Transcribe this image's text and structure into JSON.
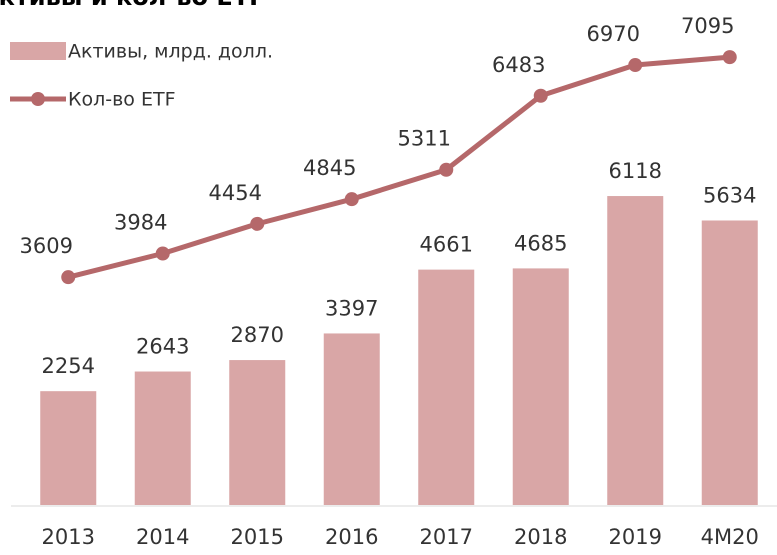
{
  "chart_data": {
    "type": "bar_line",
    "title": "Активы и кол-во ETF",
    "categories": [
      "2013",
      "2014",
      "2015",
      "2016",
      "2017",
      "2018",
      "2019",
      "4M20"
    ],
    "series": [
      {
        "name": "Активы, млрд. долл.",
        "type": "bar",
        "color": "#d9a6a6",
        "values": [
          2254,
          2643,
          2870,
          3397,
          4661,
          4685,
          6118,
          5634
        ]
      },
      {
        "name": "Кол-во ETF",
        "type": "line",
        "axis": "y2",
        "color": "#b5686a",
        "values": [
          3609,
          3984,
          4454,
          4845,
          5311,
          6483,
          6970,
          7095
        ]
      }
    ],
    "ylim": [
      0,
      10000
    ],
    "y2lim": [
      0,
      8000
    ],
    "legend": "top-left"
  }
}
